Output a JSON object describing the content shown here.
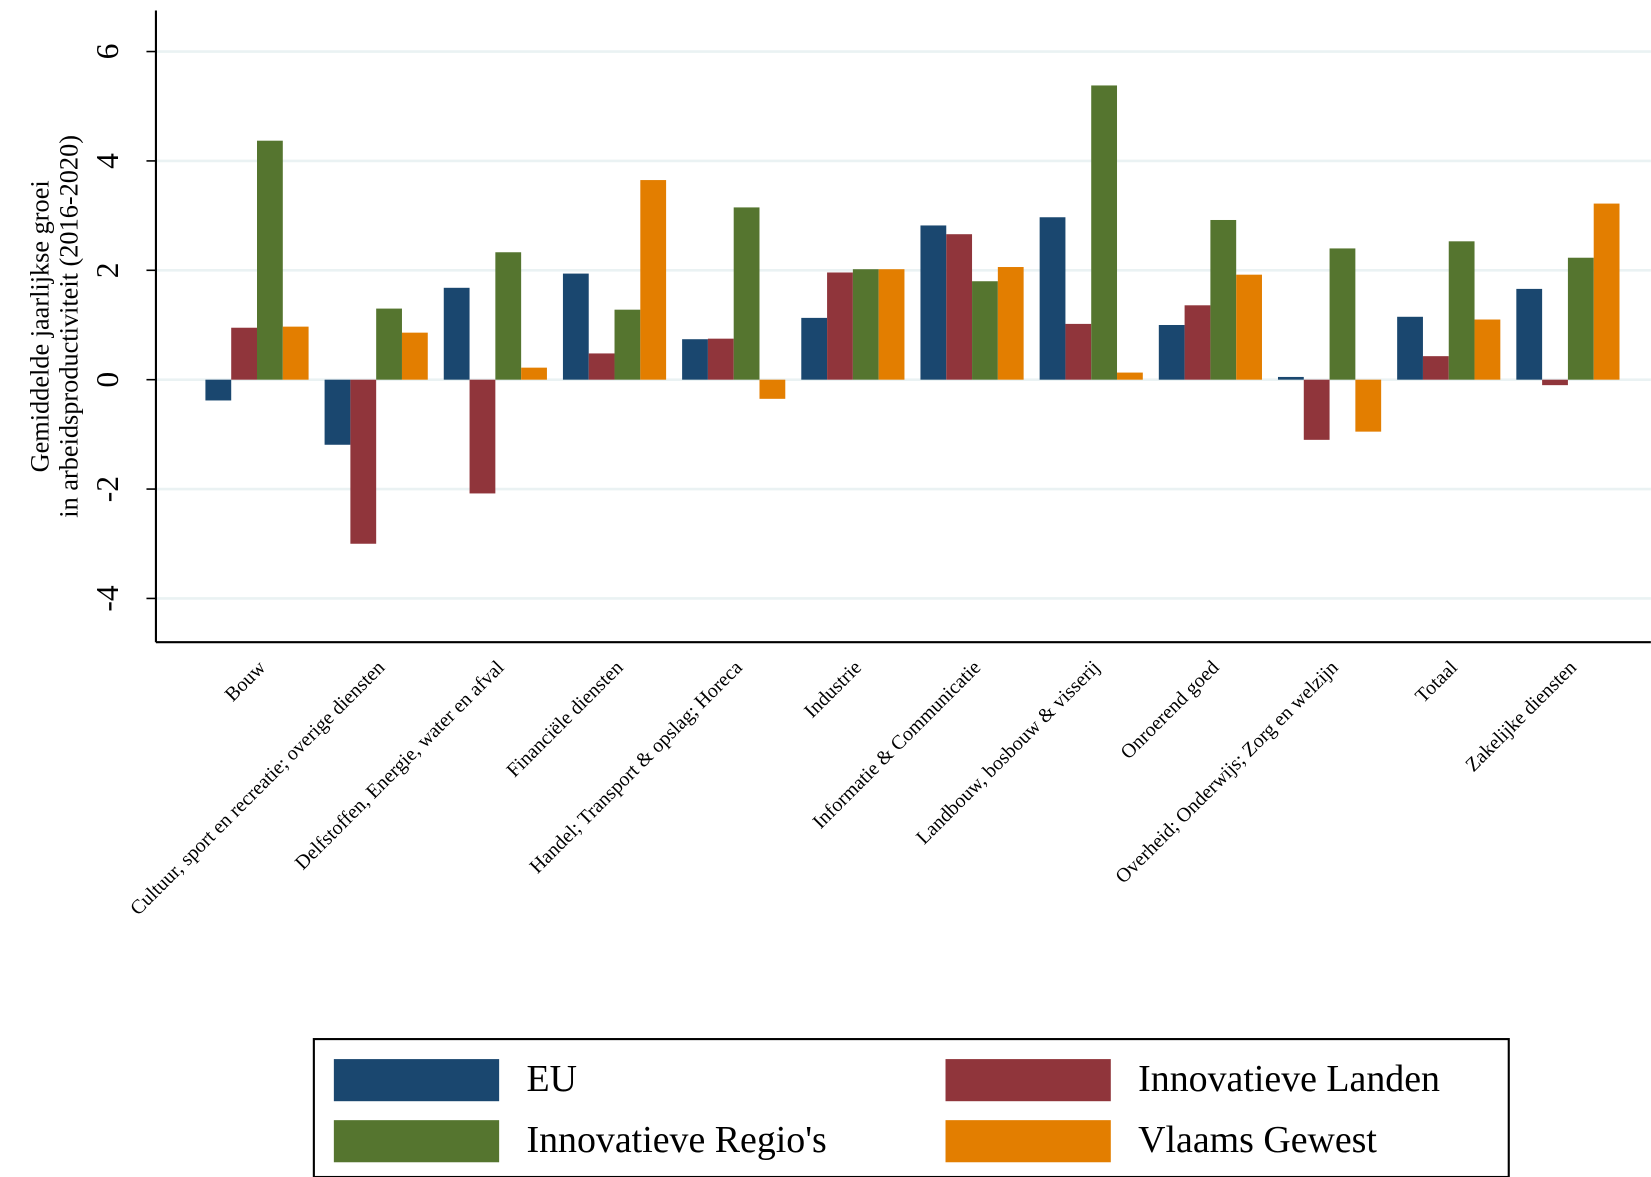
{
  "chart_data": {
    "type": "bar",
    "ylabel": [
      "Gemiddelde jaarlijkse groei",
      "in arbeidsproductiviteit (2016-2020)"
    ],
    "categories": [
      "Bouw",
      "Cultuur, sport en recreatie; overige diensten",
      "Delfstoffen, Energie, water en afval",
      "Financiële diensten",
      "Handel; Transport & opslag; Horeca",
      "Industrie",
      "Informatie & Communicatie",
      "Landbouw, bosbouw & visserij",
      "Onroerend goed",
      "Overheid; Onderwijs; Zorg en welzijn",
      "Totaal",
      "Zakelijke diensten"
    ],
    "series": [
      {
        "name": "EU",
        "color": "#1a476f",
        "values": [
          -0.38,
          -1.19,
          1.68,
          1.94,
          0.74,
          1.13,
          2.82,
          2.97,
          1.0,
          0.05,
          1.15,
          1.66
        ]
      },
      {
        "name": "Innovatieve Landen",
        "color": "#90353b",
        "values": [
          0.95,
          -3.0,
          -2.08,
          0.48,
          0.75,
          1.96,
          2.66,
          1.02,
          1.36,
          -1.1,
          0.43,
          -0.1
        ]
      },
      {
        "name": "Innovatieve Regio's",
        "color": "#55752f",
        "values": [
          4.37,
          1.3,
          2.33,
          1.28,
          3.15,
          2.02,
          1.8,
          5.38,
          2.92,
          2.4,
          2.53,
          2.23
        ]
      },
      {
        "name": "Vlaams Gewest",
        "color": "#e37e00",
        "values": [
          0.97,
          0.86,
          0.22,
          3.65,
          -0.35,
          2.02,
          2.06,
          0.13,
          1.92,
          -0.95,
          1.1,
          3.22
        ]
      }
    ],
    "ylim": [
      -4.8,
      6.75
    ],
    "yticks": [
      -4,
      -2,
      0,
      2,
      4,
      6
    ],
    "grid": true,
    "legend": "bottom"
  }
}
